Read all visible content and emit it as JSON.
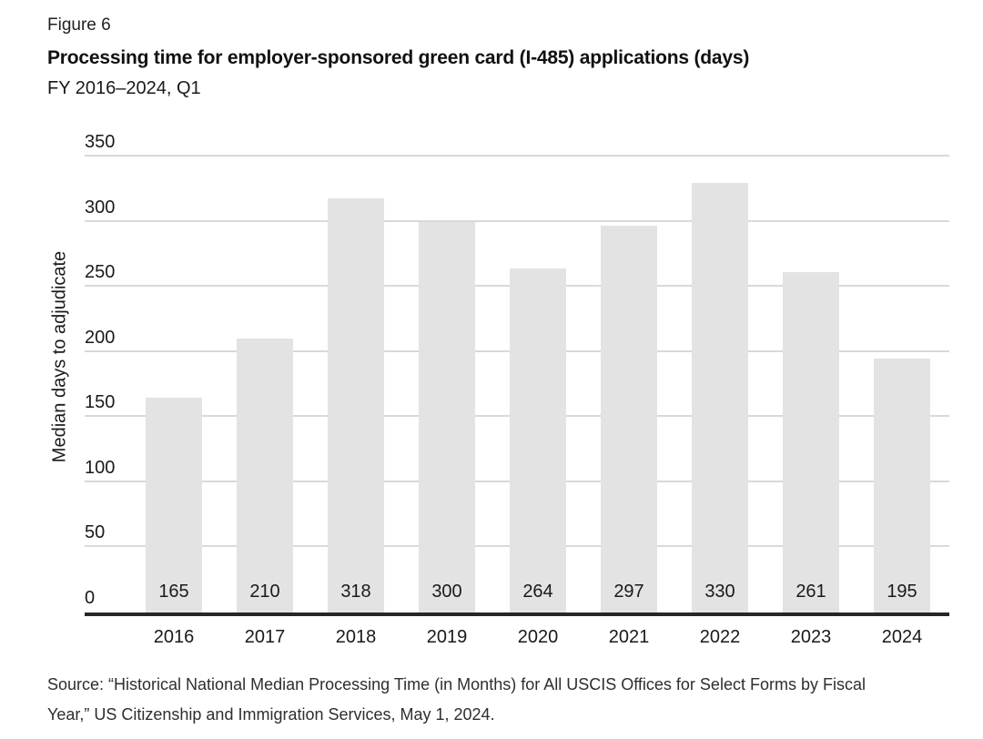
{
  "page": {
    "figure_label": "Figure 6",
    "title": "Processing time for employer-sponsored green card (I-485) applications (days)",
    "subtitle": "FY 2016–2024, Q1",
    "source_lines": [
      "Source: “Historical National Median Processing Time (in Months) for All USCIS Offices for Select Forms by Fiscal",
      "Year,” US Citizenship and Immigration Services, May 1, 2024."
    ]
  },
  "chart_data": {
    "type": "bar",
    "title": "Processing time for employer-sponsored green card (I-485) applications (days)",
    "subtitle": "FY 2016–2024, Q1",
    "categories": [
      "2016",
      "2017",
      "2018",
      "2019",
      "2020",
      "2021",
      "2022",
      "2023",
      "2024"
    ],
    "values": [
      165,
      210,
      318,
      300,
      264,
      297,
      330,
      261,
      195
    ],
    "xlabel": "",
    "ylabel": "Median days to adjudicate",
    "ylim": [
      0,
      350
    ],
    "yticks": [
      0,
      50,
      100,
      150,
      200,
      250,
      300,
      350
    ],
    "grid": true,
    "legend_position": "none",
    "value_label_position": "inside-bottom",
    "tick_label_position": "above-gridline-left",
    "colors": {
      "bar_fill": "#e3e3e3",
      "gridline": "#d9d9d9",
      "axis_line": "#262626",
      "label_text": "#1a1a1a"
    }
  }
}
